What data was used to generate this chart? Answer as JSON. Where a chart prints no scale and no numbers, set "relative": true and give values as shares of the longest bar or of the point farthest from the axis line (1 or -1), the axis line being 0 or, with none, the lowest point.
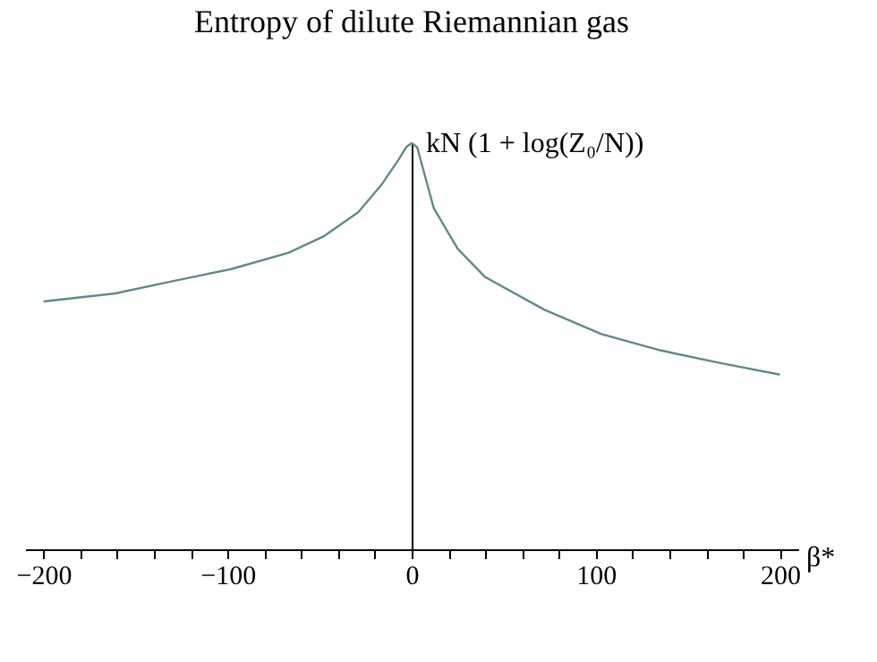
{
  "chart_data": {
    "type": "line",
    "title": "Entropy of dilute Riemannian gas",
    "xlabel": "β*",
    "relative": true,
    "x": [
      -200,
      -161,
      -130,
      -98,
      -67,
      -48,
      -29,
      -16,
      -7,
      -3,
      0,
      3,
      6,
      12,
      25,
      40,
      72,
      103,
      135,
      166,
      200
    ],
    "series": [
      {
        "color": "#5f8b86",
        "values": [
          0.61,
          0.63,
          0.66,
          0.69,
          0.73,
          0.77,
          0.83,
          0.9,
          0.96,
          0.99,
          1,
          0.99,
          0.94,
          0.84,
          0.74,
          0.67,
          0.59,
          0.53,
          0.49,
          0.46,
          0.43
        ]
      }
    ],
    "xlim": [
      -210,
      210
    ],
    "xticks": [
      -200,
      {
        "value": -180,
        "label": null
      },
      {
        "value": -160,
        "label": null
      },
      {
        "value": -140,
        "label": null
      },
      {
        "value": -120,
        "label": null
      },
      -100,
      {
        "value": -80,
        "label": null
      },
      {
        "value": -60,
        "label": null
      },
      {
        "value": -40,
        "label": null
      },
      {
        "value": -20,
        "label": null
      },
      0,
      {
        "value": 20,
        "label": null
      },
      {
        "value": 40,
        "label": null
      },
      {
        "value": 60,
        "label": null
      },
      {
        "value": 80,
        "label": null
      },
      100,
      {
        "value": 120,
        "label": null
      },
      {
        "value": 140,
        "label": null
      },
      {
        "value": 160,
        "label": null
      },
      {
        "value": 180,
        "label": null
      },
      200
    ],
    "annotations": [
      {
        "text": "kN (1 + log(Z₀/N))",
        "x": 0,
        "y": 1
      }
    ],
    "legend": false,
    "line_style": "solid",
    "marker": "none"
  }
}
